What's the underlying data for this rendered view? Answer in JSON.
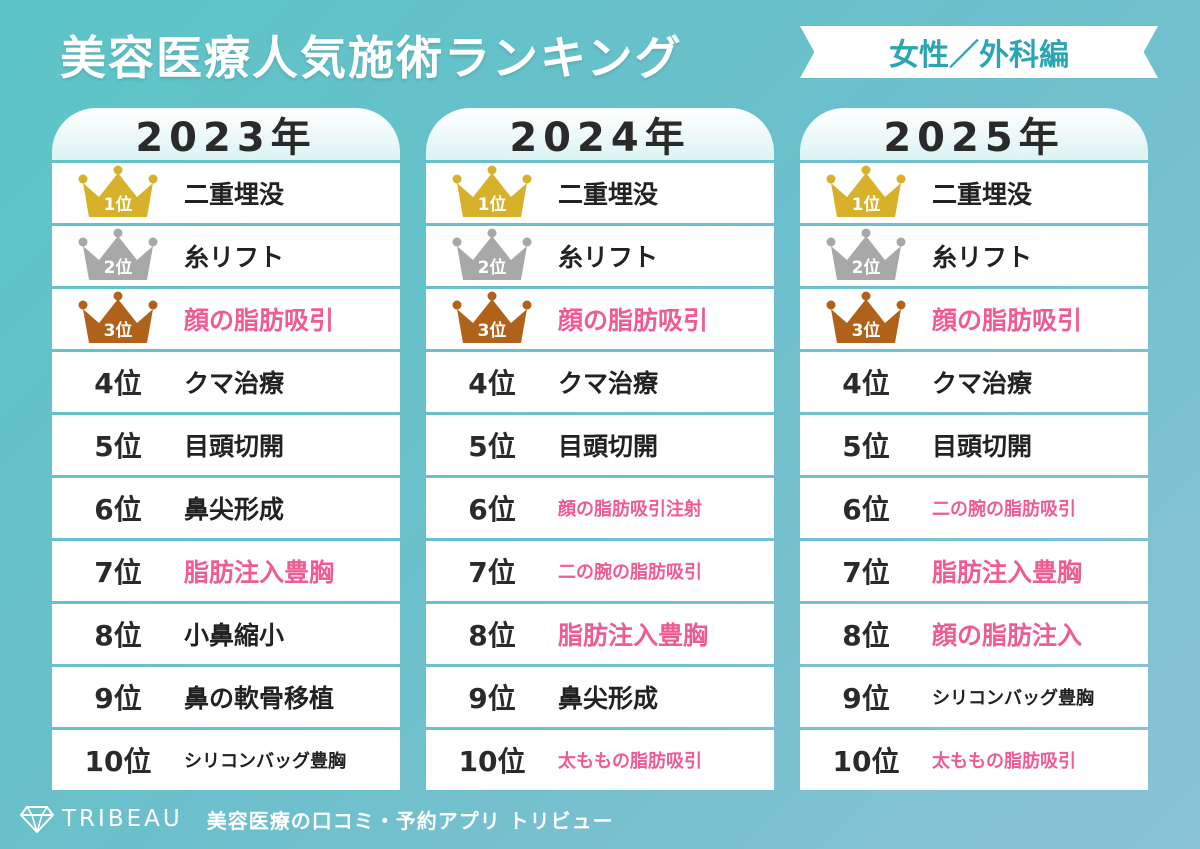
{
  "title": "美容医療人気施術ランキング",
  "tag": "女性／外科編",
  "colors": {
    "gold": "#d8b12a",
    "silver": "#a8a8a8",
    "bronze": "#b0621a",
    "pink": "#ef5b93",
    "accent": "#2aa6b3"
  },
  "columns": [
    {
      "year": "2023年",
      "rows": [
        {
          "rank": "1位",
          "name": "二重埋没",
          "highlight": false
        },
        {
          "rank": "2位",
          "name": "糸リフト",
          "highlight": false
        },
        {
          "rank": "3位",
          "name": "顔の脂肪吸引",
          "highlight": true
        },
        {
          "rank": "4位",
          "name": "クマ治療",
          "highlight": false
        },
        {
          "rank": "5位",
          "name": "目頭切開",
          "highlight": false
        },
        {
          "rank": "6位",
          "name": "鼻尖形成",
          "highlight": false
        },
        {
          "rank": "7位",
          "name": "脂肪注入豊胸",
          "highlight": true
        },
        {
          "rank": "8位",
          "name": "小鼻縮小",
          "highlight": false
        },
        {
          "rank": "9位",
          "name": "鼻の軟骨移植",
          "highlight": false
        },
        {
          "rank": "10位",
          "name": "シリコンバッグ豊胸",
          "highlight": false
        }
      ]
    },
    {
      "year": "2024年",
      "rows": [
        {
          "rank": "1位",
          "name": "二重埋没",
          "highlight": false
        },
        {
          "rank": "2位",
          "name": "糸リフト",
          "highlight": false
        },
        {
          "rank": "3位",
          "name": "顔の脂肪吸引",
          "highlight": true
        },
        {
          "rank": "4位",
          "name": "クマ治療",
          "highlight": false
        },
        {
          "rank": "5位",
          "name": "目頭切開",
          "highlight": false
        },
        {
          "rank": "6位",
          "name": "顔の脂肪吸引注射",
          "highlight": true
        },
        {
          "rank": "7位",
          "name": "二の腕の脂肪吸引",
          "highlight": true
        },
        {
          "rank": "8位",
          "name": "脂肪注入豊胸",
          "highlight": true
        },
        {
          "rank": "9位",
          "name": "鼻尖形成",
          "highlight": false
        },
        {
          "rank": "10位",
          "name": "太ももの脂肪吸引",
          "highlight": true
        }
      ]
    },
    {
      "year": "2025年",
      "rows": [
        {
          "rank": "1位",
          "name": "二重埋没",
          "highlight": false
        },
        {
          "rank": "2位",
          "name": "糸リフト",
          "highlight": false
        },
        {
          "rank": "3位",
          "name": "顔の脂肪吸引",
          "highlight": true
        },
        {
          "rank": "4位",
          "name": "クマ治療",
          "highlight": false
        },
        {
          "rank": "5位",
          "name": "目頭切開",
          "highlight": false
        },
        {
          "rank": "6位",
          "name": "二の腕の脂肪吸引",
          "highlight": true
        },
        {
          "rank": "7位",
          "name": "脂肪注入豊胸",
          "highlight": true
        },
        {
          "rank": "8位",
          "name": "顔の脂肪注入",
          "highlight": true
        },
        {
          "rank": "9位",
          "name": "シリコンバッグ豊胸",
          "highlight": false
        },
        {
          "rank": "10位",
          "name": "太ももの脂肪吸引",
          "highlight": true
        }
      ]
    }
  ],
  "footer": {
    "logo_icon": "diamond-icon",
    "brand": "TRIBEAU",
    "tagline": "美容医療の口コミ・予約アプリ トリビュー"
  }
}
